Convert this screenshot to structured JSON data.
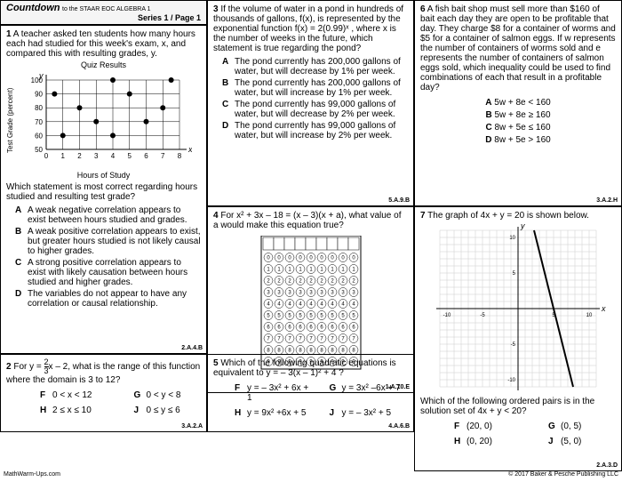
{
  "header": {
    "brand": "Countdown",
    "sub": "to the STAAR EOC ALGEBRA 1",
    "series": "Series 1 / Page 1"
  },
  "q1": {
    "num": "1",
    "text": "A teacher asked ten students how many hours each had studied for this week's exam, x, and compared this with resulting grades, y.",
    "chartTitle": "Quiz Results",
    "yLabel": "Test Grade (percent)",
    "xLabel": "Hours of Study",
    "yticks": [
      "100",
      "90",
      "80",
      "70",
      "60",
      "50"
    ],
    "xticks": [
      "0",
      "1",
      "2",
      "3",
      "4",
      "5",
      "6",
      "7",
      "8"
    ],
    "points": [
      [
        0.5,
        90
      ],
      [
        1,
        60
      ],
      [
        2,
        80
      ],
      [
        3,
        70
      ],
      [
        4,
        100
      ],
      [
        4,
        60
      ],
      [
        5,
        90
      ],
      [
        6,
        70
      ],
      [
        7,
        80
      ],
      [
        7.5,
        100
      ]
    ],
    "followup": "Which statement is most correct regarding hours studied and resulting test grade?",
    "choices": {
      "A": "A weak negative correlation appears to exist between hours studied and grades.",
      "B": "A weak positive correlation appears to exist, but greater hours studied is not likely causal to higher grades.",
      "C": "A strong positive correlation appears to exist with likely causation between hours studied and higher grades.",
      "D": "The variables do not appear to have any correlation or causal relationship."
    },
    "std": "2.A.4.B"
  },
  "q2": {
    "num": "2",
    "pre": "For y = ",
    "fracN": "2",
    "fracD": "3",
    "post": "x – 2, what is the range of this function where the domain is 3 to 12?",
    "choices": {
      "F": "0 < x < 12",
      "G": "0 < y < 8",
      "H": "2 ≤ x ≤ 10",
      "J": "0 ≤ y ≤ 6"
    },
    "std": "3.A.2.A"
  },
  "q3": {
    "num": "3",
    "text": "If the volume of water in a pond in hundreds of thousands of gallons, f(x), is represented by the exponential function f(x) = 2(0.99)ˣ , where x is the number of weeks in the future, which statement is true regarding the pond?",
    "choices": {
      "A": "The pond currently has 200,000 gallons of water, but will decrease by 1% per week.",
      "B": "The pond currently has 200,000 gallons of water, but will increase by 1% per week.",
      "C": "The pond currently has 99,000 gallons of water, but will decrease by 2% per week.",
      "D": "The pond currently has 99,000 gallons of water, but will increase by 2% per week."
    },
    "std": "5.A.9.B"
  },
  "q4": {
    "num": "4",
    "text": "For x² + 3x – 18 = (x – 3)(x + a), what value of a would make this equation true?",
    "std": "1.A.10.E"
  },
  "q5": {
    "num": "5",
    "text": "Which of the following quadratic equations is equivalent to y = – 3(x – 1)² + 4 ?",
    "choices": {
      "F": "y = – 3x² + 6x + 1",
      "G": "y = 3x² –6x + 7",
      "H": "y = 9x² +6x + 5",
      "J": "y = – 3x² + 5"
    },
    "std": "4.A.6.B"
  },
  "q6": {
    "num": "6",
    "text": "A fish bait shop must sell more than $160 of bait each day they are open to be profitable that day. They charge $8 for a container of worms and $5 for a container of salmon eggs. If w represents the number of containers of worms sold and e represents the number of containers of salmon eggs sold, which inequality could be used to find combinations of each that result in a profitable day?",
    "choices": {
      "A": "5w + 8e < 160",
      "B": "5w + 8e ≥ 160",
      "C": "8w + 5e ≤ 160",
      "D": "8w + 5e > 160"
    },
    "std": "3.A.2.H"
  },
  "q7": {
    "num": "7",
    "text": "The graph of 4x + y = 20 is shown below.",
    "followup": "Which of the following ordered pairs is in the solution set of 4x + y < 20?",
    "choices": {
      "F": "(20, 0)",
      "G": "(0, 5)",
      "H": "(0, 20)",
      "J": "(5, 0)"
    },
    "std": "2.A.3.D"
  },
  "footer": {
    "left": "MathWarm-Ups.com",
    "right": "© 2017 Baker & Pesche Publishing LLC"
  }
}
